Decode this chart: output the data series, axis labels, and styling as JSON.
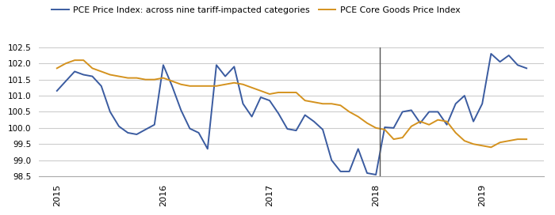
{
  "title": "",
  "legend_blue": "PCE Price Index: across nine tariff-impacted categories",
  "legend_orange": "PCE Core Goods Price Index",
  "blue_color": "#3A5BA0",
  "orange_color": "#D4921E",
  "vline_x": 2018.04,
  "ylim": [
    98.5,
    102.5
  ],
  "yticks": [
    98.5,
    99.0,
    99.5,
    100.0,
    100.5,
    101.0,
    101.5,
    102.0,
    102.5
  ],
  "xtick_labels": [
    "2015",
    "2016",
    "2017",
    "2018",
    "2019"
  ],
  "xtick_positions": [
    2015,
    2016,
    2017,
    2018,
    2019
  ],
  "xlim": [
    2014.83,
    2019.58
  ],
  "blue_x": [
    2015.0,
    2015.083,
    2015.167,
    2015.25,
    2015.333,
    2015.417,
    2015.5,
    2015.583,
    2015.667,
    2015.75,
    2015.833,
    2015.917,
    2016.0,
    2016.083,
    2016.167,
    2016.25,
    2016.333,
    2016.417,
    2016.5,
    2016.583,
    2016.667,
    2016.75,
    2016.833,
    2016.917,
    2017.0,
    2017.083,
    2017.167,
    2017.25,
    2017.333,
    2017.417,
    2017.5,
    2017.583,
    2017.667,
    2017.75,
    2017.833,
    2017.917,
    2018.0,
    2018.083,
    2018.167,
    2018.25,
    2018.333,
    2018.417,
    2018.5,
    2018.583,
    2018.667,
    2018.75,
    2018.833,
    2018.917,
    2019.0,
    2019.083,
    2019.167,
    2019.25,
    2019.333,
    2019.417
  ],
  "blue_y": [
    101.15,
    101.45,
    101.75,
    101.65,
    101.6,
    101.3,
    100.5,
    100.05,
    99.85,
    99.8,
    99.95,
    100.1,
    101.95,
    101.3,
    100.55,
    99.98,
    99.85,
    99.35,
    101.95,
    101.6,
    101.9,
    100.75,
    100.35,
    100.95,
    100.85,
    100.45,
    99.97,
    99.92,
    100.4,
    100.2,
    99.95,
    99.0,
    98.65,
    98.65,
    99.35,
    98.6,
    98.55,
    100.02,
    100.0,
    100.5,
    100.55,
    100.15,
    100.5,
    100.5,
    100.1,
    100.75,
    101.0,
    100.2,
    100.75,
    102.3,
    102.05,
    102.25,
    101.95,
    101.85
  ],
  "orange_x": [
    2015.0,
    2015.083,
    2015.167,
    2015.25,
    2015.333,
    2015.417,
    2015.5,
    2015.583,
    2015.667,
    2015.75,
    2015.833,
    2015.917,
    2016.0,
    2016.083,
    2016.167,
    2016.25,
    2016.333,
    2016.417,
    2016.5,
    2016.583,
    2016.667,
    2016.75,
    2016.833,
    2016.917,
    2017.0,
    2017.083,
    2017.167,
    2017.25,
    2017.333,
    2017.417,
    2017.5,
    2017.583,
    2017.667,
    2017.75,
    2017.833,
    2017.917,
    2018.0,
    2018.083,
    2018.167,
    2018.25,
    2018.333,
    2018.417,
    2018.5,
    2018.583,
    2018.667,
    2018.75,
    2018.833,
    2018.917,
    2019.0,
    2019.083,
    2019.167,
    2019.25,
    2019.333,
    2019.417
  ],
  "orange_y": [
    101.85,
    102.0,
    102.1,
    102.1,
    101.85,
    101.75,
    101.65,
    101.6,
    101.55,
    101.55,
    101.5,
    101.5,
    101.55,
    101.45,
    101.35,
    101.3,
    101.3,
    101.3,
    101.3,
    101.35,
    101.4,
    101.35,
    101.25,
    101.15,
    101.05,
    101.1,
    101.1,
    101.1,
    100.85,
    100.8,
    100.75,
    100.75,
    100.7,
    100.5,
    100.35,
    100.15,
    100.0,
    99.95,
    99.65,
    99.7,
    100.05,
    100.2,
    100.1,
    100.25,
    100.2,
    99.85,
    99.6,
    99.5,
    99.45,
    99.4,
    99.55,
    99.6,
    99.65,
    99.65
  ],
  "background_color": "#ffffff",
  "grid_color": "#cccccc"
}
